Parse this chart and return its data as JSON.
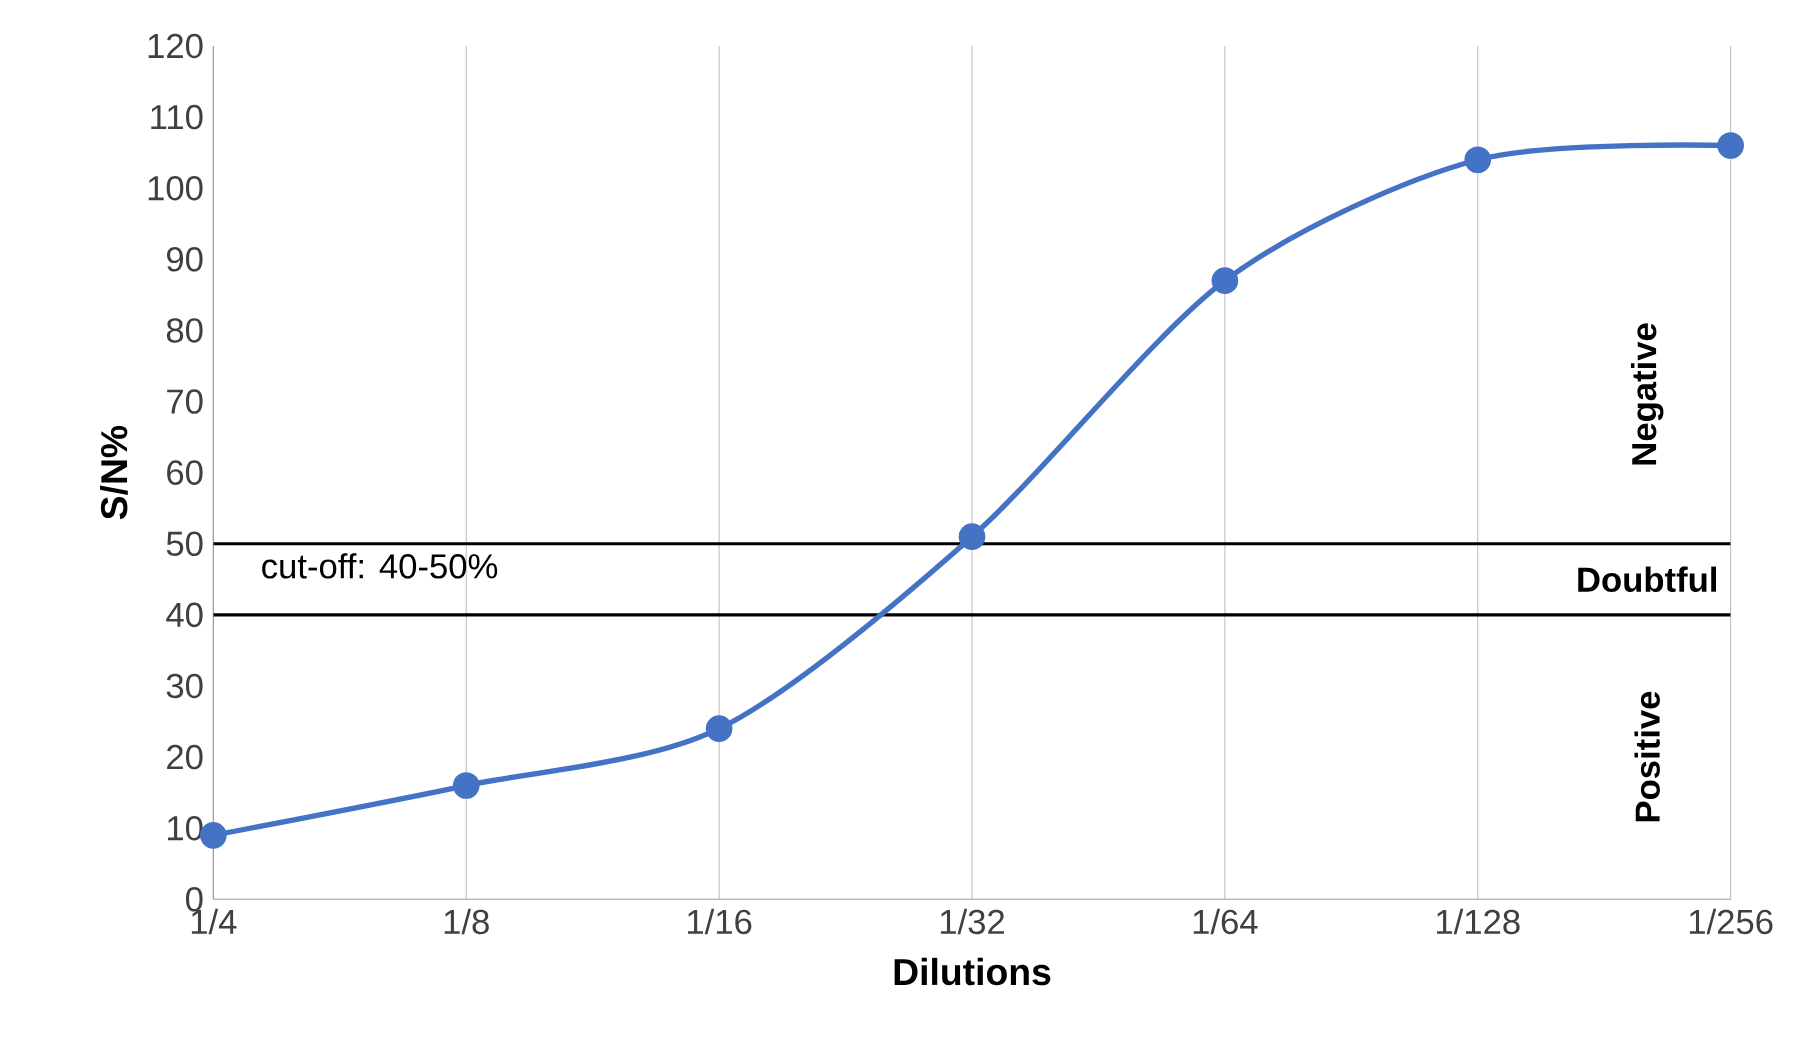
{
  "chart_data": {
    "type": "line",
    "xlabel": "Dilutions",
    "ylabel": "S/N%",
    "categories": [
      "1/4",
      "1/8",
      "1/16",
      "1/32",
      "1/64",
      "1/128",
      "1/256"
    ],
    "series": [
      {
        "color": "#4472c4",
        "values": [
          9,
          16,
          24,
          51,
          87,
          104,
          106
        ]
      }
    ],
    "ylim": [
      0,
      120
    ],
    "yticks": [
      0,
      10,
      20,
      30,
      40,
      50,
      60,
      70,
      80,
      90,
      100,
      110,
      120
    ],
    "grid": "x",
    "marker": "circle",
    "line_style": "solid",
    "ref_lines": [
      {
        "axis": "y",
        "value": 50,
        "color": "#000000"
      },
      {
        "axis": "y",
        "value": 40,
        "color": "#000000"
      }
    ],
    "annotations": [
      "cut-off: 40-50%",
      "Negative",
      "Doubtful",
      "Positive"
    ]
  }
}
